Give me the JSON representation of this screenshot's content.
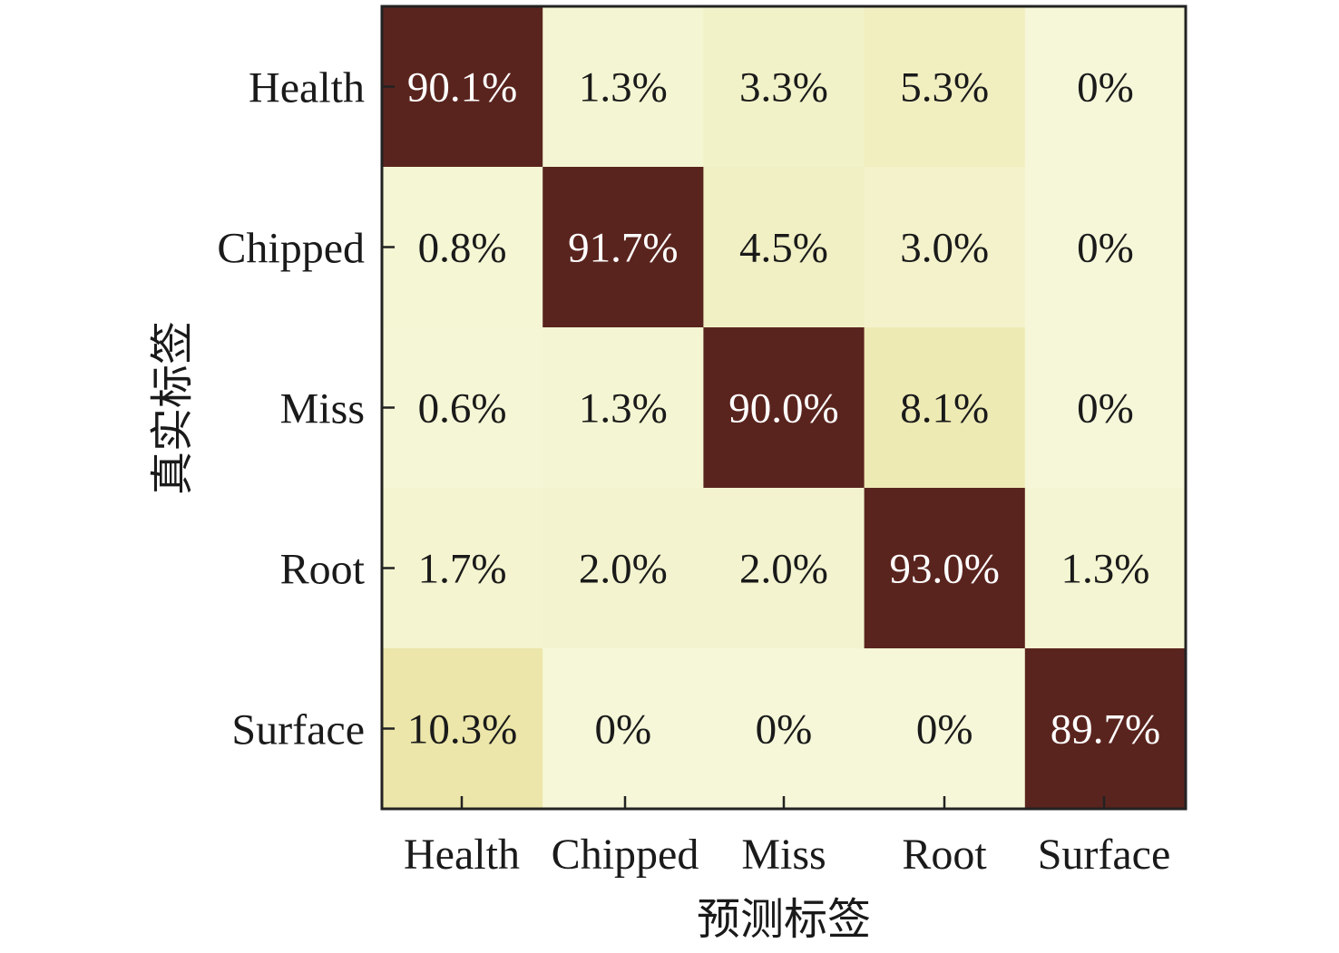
{
  "chart_data": {
    "type": "heatmap",
    "title": "",
    "xlabel": "预测标签",
    "ylabel": "真实标签",
    "x_categories": [
      "Health",
      "Chipped",
      "Miss",
      "Root",
      "Surface"
    ],
    "y_categories": [
      "Health",
      "Chipped",
      "Miss",
      "Root",
      "Surface"
    ],
    "values": [
      [
        90.1,
        1.3,
        3.3,
        5.3,
        0
      ],
      [
        0.8,
        91.7,
        4.5,
        3.0,
        0
      ],
      [
        0.6,
        1.3,
        90.0,
        8.1,
        0
      ],
      [
        1.7,
        2.0,
        2.0,
        93.0,
        1.3
      ],
      [
        10.3,
        0,
        0,
        0,
        89.7
      ]
    ],
    "labels": [
      [
        "90.1%",
        "1.3%",
        "3.3%",
        "5.3%",
        "0%"
      ],
      [
        "0.8%",
        "91.7%",
        "4.5%",
        "3.0%",
        "0%"
      ],
      [
        "0.6%",
        "1.3%",
        "90.0%",
        "8.1%",
        "0%"
      ],
      [
        "1.7%",
        "2.0%",
        "2.0%",
        "93.0%",
        "1.3%"
      ],
      [
        "10.3%",
        "0%",
        "0%",
        "0%",
        "89.7%"
      ]
    ],
    "unit": "%",
    "colors": {
      "low": "#f5f7d8",
      "mid": "#ebe3a2",
      "high": "#5a241e",
      "text_dark": "#1a1a1a",
      "text_light": "#ffffff"
    }
  }
}
